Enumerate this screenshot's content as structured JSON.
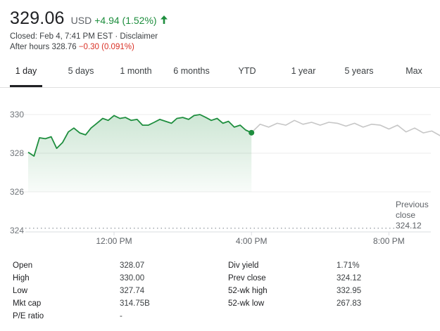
{
  "quote": {
    "price": "329.06",
    "currency": "USD",
    "change": "+4.94 (1.52%)",
    "change_direction": "up",
    "up_color": "#1e8e3e",
    "closed_text": "Closed: Feb 4, 7:41 PM EST · Disclaimer",
    "after_hours_label": "After hours 328.76",
    "after_hours_change": "−0.30 (0.091%)",
    "down_color": "#d93025"
  },
  "tabs": [
    {
      "label": "1 day",
      "active": true
    },
    {
      "label": "5 days",
      "active": false
    },
    {
      "label": "1 month",
      "active": false
    },
    {
      "label": "6 months",
      "active": false
    },
    {
      "label": "YTD",
      "active": false
    },
    {
      "label": "1 year",
      "active": false
    },
    {
      "label": "5 years",
      "active": false
    },
    {
      "label": "Max",
      "active": false
    }
  ],
  "chart_data": {
    "type": "line",
    "y_ticks": [
      "330",
      "328",
      "326",
      "324"
    ],
    "x_ticks": [
      "12:00 PM",
      "4:00 PM",
      "8:00 PM"
    ],
    "ylim": [
      324,
      330.8
    ],
    "previous_close": {
      "label": [
        "Previous",
        "close",
        "324.12"
      ],
      "value": 324.12
    },
    "series": [
      {
        "session": "regular",
        "color": "#1e8e3e",
        "x": [
          9.5,
          9.67,
          9.83,
          10.0,
          10.17,
          10.33,
          10.5,
          10.67,
          10.83,
          11.0,
          11.17,
          11.33,
          11.5,
          11.67,
          11.83,
          12.0,
          12.17,
          12.33,
          12.5,
          12.67,
          12.83,
          13.0,
          13.17,
          13.33,
          13.5,
          13.67,
          13.83,
          14.0,
          14.17,
          14.33,
          14.5,
          14.67,
          14.83,
          15.0,
          15.17,
          15.33,
          15.5,
          15.67,
          15.83,
          16.0
        ],
        "y": [
          328.05,
          327.85,
          328.8,
          328.75,
          328.85,
          328.25,
          328.55,
          329.1,
          329.3,
          329.05,
          328.95,
          329.3,
          329.55,
          329.8,
          329.7,
          329.95,
          329.8,
          329.85,
          329.7,
          329.75,
          329.45,
          329.45,
          329.6,
          329.75,
          329.65,
          329.55,
          329.8,
          329.85,
          329.75,
          329.95,
          330.0,
          329.85,
          329.7,
          329.8,
          329.55,
          329.65,
          329.35,
          329.45,
          329.2,
          329.06
        ]
      },
      {
        "session": "after-hours",
        "color": "#c6c6c6",
        "x": [
          16.0,
          16.25,
          16.5,
          16.75,
          17.0,
          17.25,
          17.5,
          17.75,
          18.0,
          18.25,
          18.5,
          18.75,
          19.0,
          19.25,
          19.5,
          19.75,
          20.0,
          20.25,
          20.5,
          20.75,
          21.0,
          21.25,
          21.5,
          21.75,
          22.0,
          22.25,
          22.5,
          22.75,
          23.0
        ],
        "y": [
          329.06,
          329.5,
          329.35,
          329.55,
          329.45,
          329.7,
          329.5,
          329.6,
          329.45,
          329.6,
          329.55,
          329.4,
          329.55,
          329.35,
          329.5,
          329.45,
          329.25,
          329.45,
          329.1,
          329.3,
          329.05,
          329.15,
          328.9,
          329.0,
          328.85,
          329.25,
          328.95,
          328.85,
          328.95
        ]
      }
    ]
  },
  "stats": {
    "left": [
      {
        "label": "Open",
        "value": "328.07"
      },
      {
        "label": "High",
        "value": "330.00"
      },
      {
        "label": "Low",
        "value": "327.74"
      },
      {
        "label": "Mkt cap",
        "value": "314.75B"
      },
      {
        "label": "P/E ratio",
        "value": "-"
      }
    ],
    "right": [
      {
        "label": "Div yield",
        "value": "1.71%"
      },
      {
        "label": "Prev close",
        "value": "324.12"
      },
      {
        "label": "52-wk high",
        "value": "332.95"
      },
      {
        "label": "52-wk low",
        "value": "267.83"
      }
    ]
  }
}
